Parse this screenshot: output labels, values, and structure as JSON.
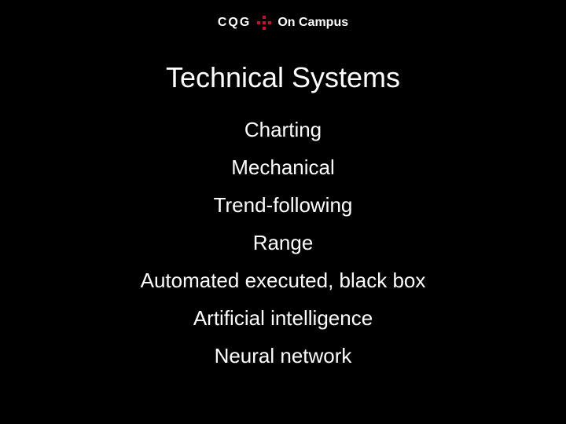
{
  "logo": {
    "brand": "CQG",
    "campus": "On Campus",
    "accent_color": "#c8102e"
  },
  "title": "Technical Systems",
  "items": [
    "Charting",
    "Mechanical",
    "Trend-following",
    "Range",
    "Automated executed, black box",
    "Artificial intelligence",
    "Neural network"
  ],
  "style": {
    "background_color": "#000000",
    "text_color": "#ffffff",
    "title_fontsize": 36,
    "item_fontsize": 26,
    "font_family": "Arial"
  }
}
